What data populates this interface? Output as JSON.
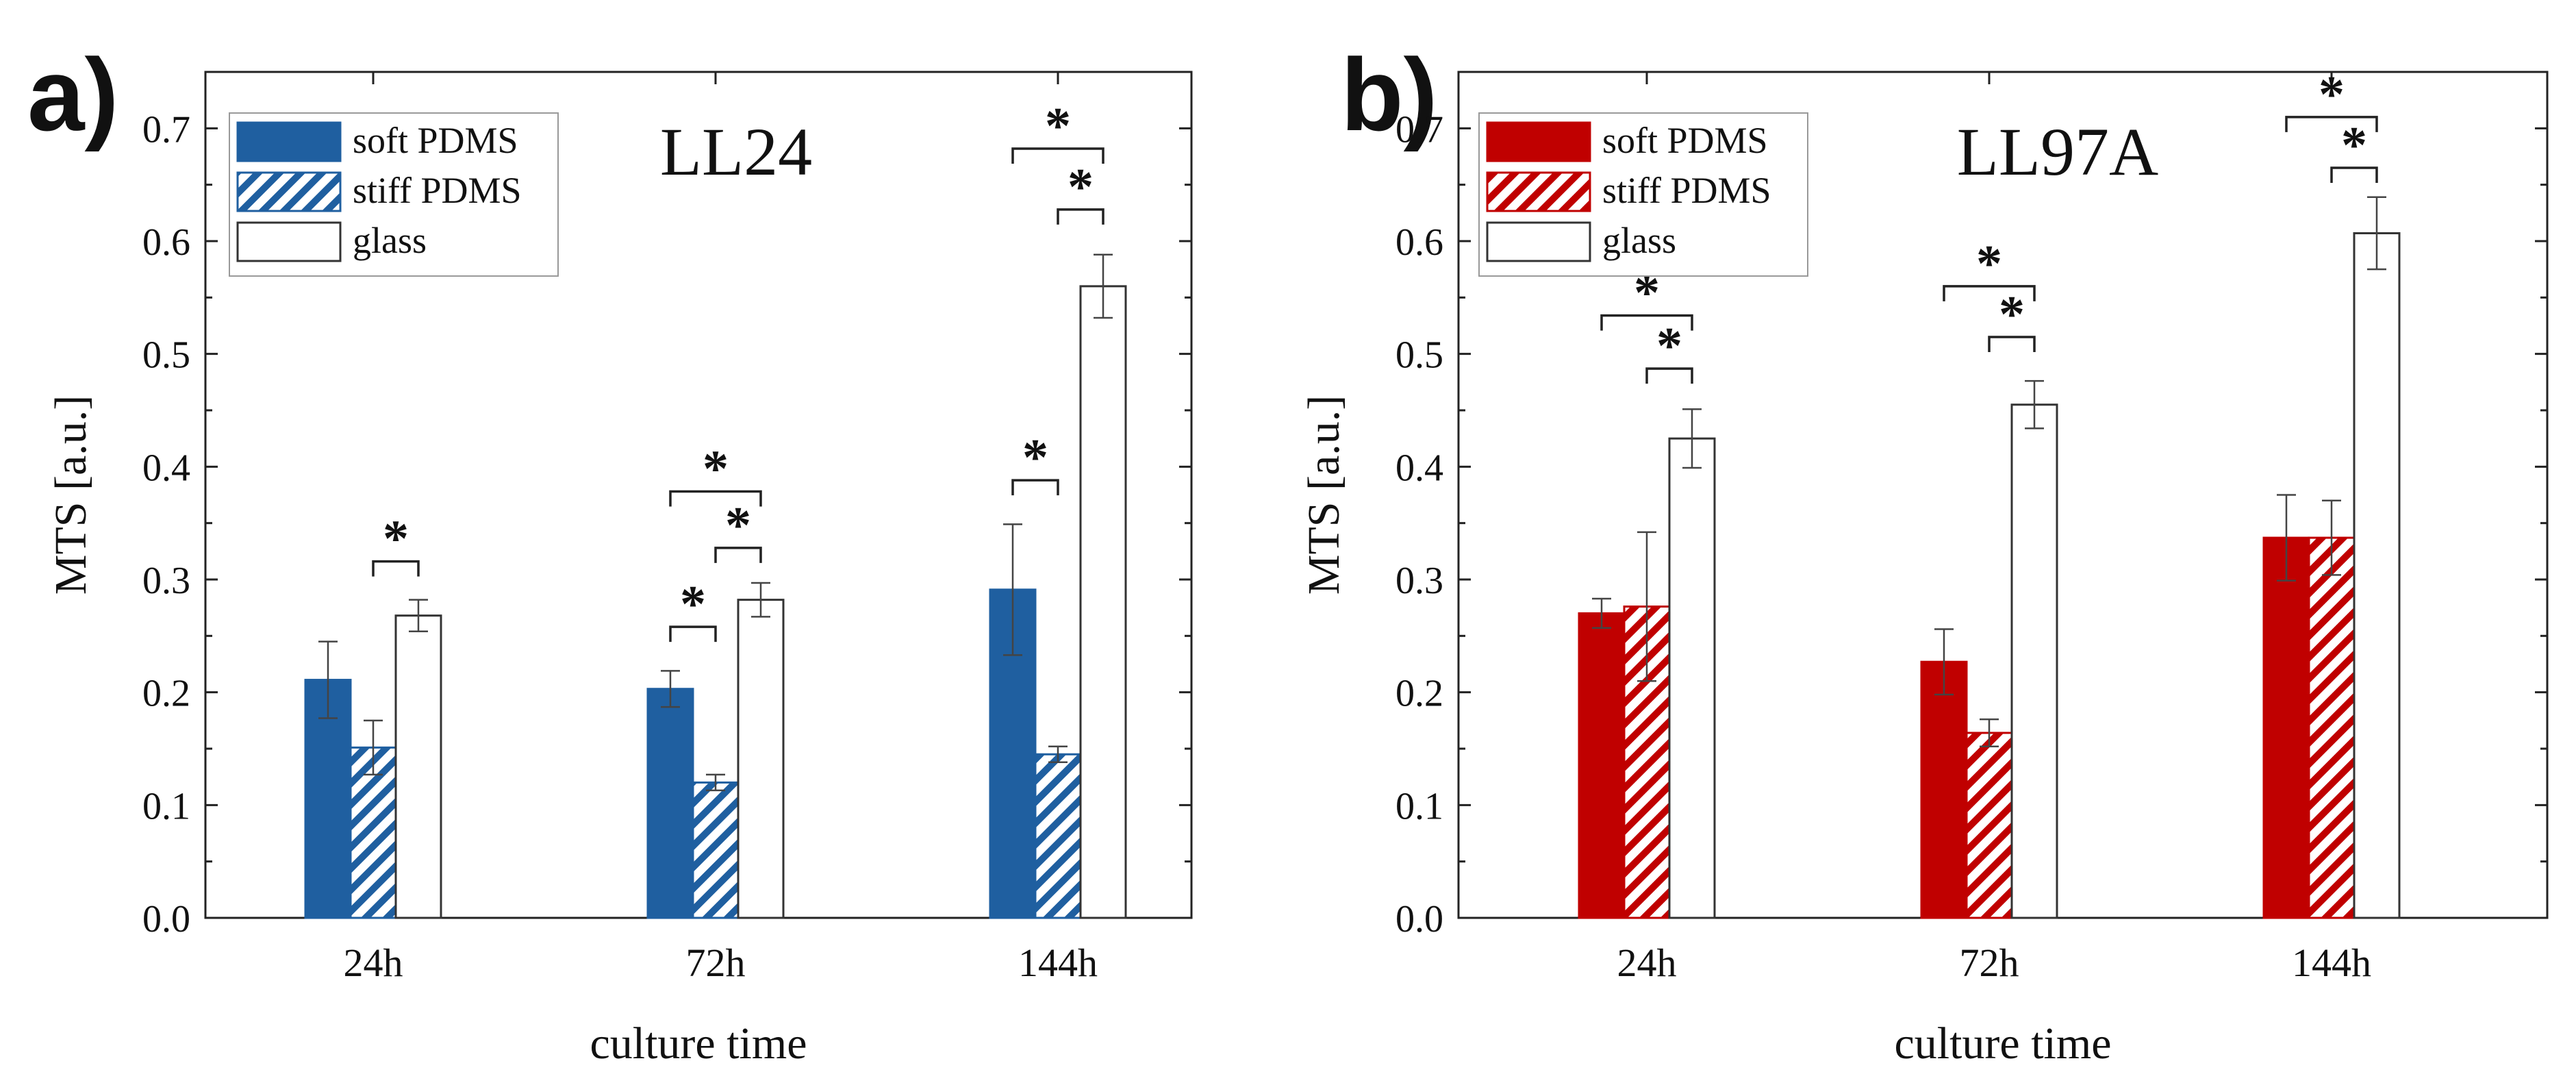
{
  "chart_data": [
    {
      "type": "bar",
      "panel_label": "a)",
      "title": "LL24",
      "xlabel": "culture time",
      "ylabel": "MTS [a.u.]",
      "ylim": [
        0,
        0.75
      ],
      "yticks": [
        "0.0",
        "0.1",
        "0.2",
        "0.3",
        "0.4",
        "0.5",
        "0.6",
        "0.7"
      ],
      "categories": [
        "24h",
        "72h",
        "144h"
      ],
      "legend_position": "top-left",
      "color": "#1f5fa0",
      "series": [
        {
          "name": "soft PDMS",
          "style": "solid",
          "values": [
            0.211,
            0.203,
            0.291
          ],
          "errors": [
            0.034,
            0.016,
            0.058
          ]
        },
        {
          "name": "stiff PDMS",
          "style": "hatched",
          "values": [
            0.151,
            0.12,
            0.145
          ],
          "errors": [
            0.024,
            0.007,
            0.007
          ]
        },
        {
          "name": "glass",
          "style": "open",
          "values": [
            0.268,
            0.282,
            0.56
          ],
          "errors": [
            0.014,
            0.015,
            0.028
          ]
        }
      ],
      "significance": [
        {
          "label": "*",
          "category": 0,
          "from": 1,
          "to": 2,
          "level": 0.316
        },
        {
          "label": "*",
          "category": 1,
          "from": 0,
          "to": 1,
          "level": 0.258
        },
        {
          "label": "*",
          "category": 1,
          "from": 1,
          "to": 2,
          "level": 0.328
        },
        {
          "label": "*",
          "category": 1,
          "from": 0,
          "to": 2,
          "level": 0.378
        },
        {
          "label": "*",
          "category": 2,
          "from": 0,
          "to": 1,
          "level": 0.388
        },
        {
          "label": "*",
          "category": 2,
          "from": 1,
          "to": 2,
          "level": 0.628
        },
        {
          "label": "*",
          "category": 2,
          "from": 0,
          "to": 2,
          "level": 0.682
        }
      ]
    },
    {
      "type": "bar",
      "panel_label": "b)",
      "title": "LL97A",
      "xlabel": "culture time",
      "ylabel": "MTS [a.u.]",
      "ylim": [
        0,
        0.75
      ],
      "yticks": [
        "0.0",
        "0.1",
        "0.2",
        "0.3",
        "0.4",
        "0.5",
        "0.6",
        "0.7"
      ],
      "categories": [
        "24h",
        "72h",
        "144h"
      ],
      "legend_position": "top-left",
      "color": "#c00000",
      "series": [
        {
          "name": "soft PDMS",
          "style": "solid",
          "values": [
            0.27,
            0.227,
            0.337
          ],
          "errors": [
            0.013,
            0.029,
            0.038
          ]
        },
        {
          "name": "stiff PDMS",
          "style": "hatched",
          "values": [
            0.276,
            0.164,
            0.337
          ],
          "errors": [
            0.066,
            0.012,
            0.033
          ]
        },
        {
          "name": "glass",
          "style": "open",
          "values": [
            0.425,
            0.455,
            0.607
          ],
          "errors": [
            0.026,
            0.021,
            0.032
          ]
        }
      ],
      "significance": [
        {
          "label": "*",
          "category": 0,
          "from": 1,
          "to": 2,
          "level": 0.487
        },
        {
          "label": "*",
          "category": 0,
          "from": 0,
          "to": 2,
          "level": 0.534
        },
        {
          "label": "*",
          "category": 1,
          "from": 1,
          "to": 2,
          "level": 0.515
        },
        {
          "label": "*",
          "category": 1,
          "from": 0,
          "to": 2,
          "level": 0.56
        },
        {
          "label": "*",
          "category": 2,
          "from": 1,
          "to": 2,
          "level": 0.665
        },
        {
          "label": "*",
          "category": 2,
          "from": 0,
          "to": 2,
          "level": 0.71
        }
      ]
    }
  ]
}
